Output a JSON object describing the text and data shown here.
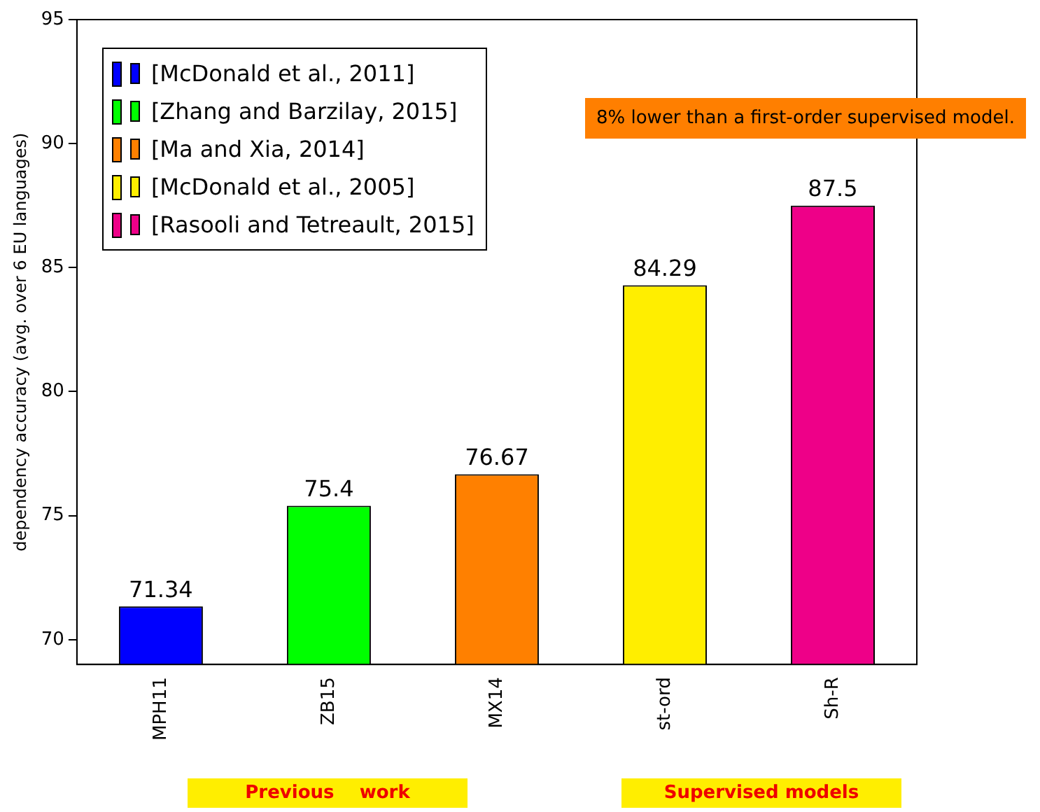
{
  "chart_data": {
    "type": "bar",
    "ylabel": "dependency accuracy (avg. over 6 EU languages)",
    "categories": [
      "MPH11",
      "ZB15",
      "MX14",
      "st-ord",
      "Sh-R"
    ],
    "series": [
      {
        "name": "[McDonald et al., 2011]",
        "color": "#0000ff",
        "values": [
          71.34,
          null,
          null,
          null,
          null
        ]
      },
      {
        "name": "[Zhang and Barzilay, 2015]",
        "color": "#00ff00",
        "values": [
          null,
          75.4,
          null,
          null,
          null
        ]
      },
      {
        "name": "[Ma and Xia, 2014]",
        "color": "#ff8000",
        "values": [
          null,
          null,
          76.67,
          null,
          null
        ]
      },
      {
        "name": "[McDonald et al., 2005]",
        "color": "#ffee00",
        "values": [
          null,
          null,
          null,
          84.29,
          null
        ]
      },
      {
        "name": "[Rasooli and Tetreault, 2015]",
        "color": "#ee0088",
        "values": [
          null,
          null,
          null,
          null,
          87.5
        ]
      }
    ],
    "ylim": [
      69,
      95
    ],
    "yticks": [
      70,
      75,
      80,
      85,
      90,
      95
    ],
    "grid": false,
    "legend": "top left",
    "data_labels": true,
    "annotations": [
      "8% lower than a first-order supervised model.",
      "Previous    work",
      "Supervised models"
    ]
  }
}
